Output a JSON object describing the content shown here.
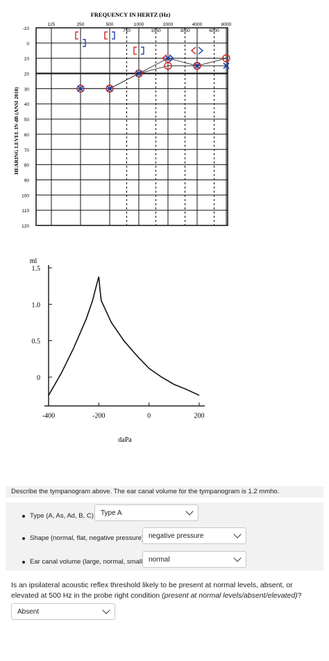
{
  "audiogram": {
    "title": "FREQUENCY IN HERTZ (Hz)",
    "y_axis_label": "HEARING LEVEL IN dB (ANSI 2010)",
    "freq_top": [
      "125",
      "250",
      "500",
      "1000",
      "2000",
      "4000",
      "8000"
    ],
    "freq_mid": [
      "750",
      "1500",
      "3000",
      "6000"
    ],
    "db_labels": [
      "-10",
      "0",
      "10",
      "20",
      "30",
      "40",
      "50",
      "60",
      "70",
      "80",
      "90",
      "100",
      "110",
      "120"
    ]
  },
  "chart_data": [
    {
      "type": "line",
      "title": "FREQUENCY IN HERTZ (Hz)",
      "xlabel": "",
      "ylabel": "HEARING LEVEL IN dB (ANSI 2010)",
      "ylim": [
        -10,
        120
      ],
      "y_inverted": true,
      "series": [
        {
          "name": "",
          "symbol": "O",
          "color": "#d02020",
          "points": [
            [
              250,
              30
            ],
            [
              500,
              30
            ],
            [
              1000,
              20
            ],
            [
              2000,
              15
            ],
            [
              4000,
              15
            ],
            [
              8000,
              10
            ]
          ]
        },
        {
          "name": "",
          "symbol": "X",
          "color": "#1a3fb0",
          "points": [
            [
              250,
              30
            ],
            [
              500,
              30
            ],
            [
              1000,
              20
            ],
            [
              2000,
              10
            ],
            [
              4000,
              15
            ],
            [
              8000,
              15
            ]
          ]
        },
        {
          "name": "",
          "symbol": "<",
          "color": "#d02020",
          "points": [
            [
              2000,
              10
            ],
            [
              4000,
              5
            ]
          ]
        },
        {
          "name": "",
          "symbol": ">",
          "color": "#1a3fb0",
          "points": [
            [
              2000,
              10
            ],
            [
              4000,
              5
            ]
          ]
        },
        {
          "name": "",
          "symbol": "[",
          "color": "#d02020",
          "points": [
            [
              250,
              -5
            ],
            [
              500,
              -5
            ],
            [
              1000,
              5
            ]
          ]
        },
        {
          "name": "",
          "symbol": "]",
          "color": "#1a3fb0",
          "points": [
            [
              250,
              0
            ],
            [
              500,
              -5
            ],
            [
              1000,
              5
            ]
          ]
        }
      ]
    },
    {
      "type": "line",
      "title": "",
      "xlabel": "daPa",
      "ylabel": "ml",
      "xlim": [
        -400,
        200
      ],
      "ylim": [
        0,
        1.5
      ],
      "x_ticks": [
        "-400",
        "-200",
        "0",
        "200"
      ],
      "y_ticks": [
        "1.5",
        "1.0",
        "0.5",
        "0"
      ],
      "series": [
        {
          "name": "",
          "x": [
            -400,
            -350,
            -300,
            -250,
            -225,
            -210,
            -200,
            -195,
            -190,
            -170,
            -150,
            -100,
            -50,
            0,
            50,
            100,
            150,
            200
          ],
          "y": [
            -0.25,
            0.05,
            0.4,
            0.8,
            1.05,
            1.25,
            1.38,
            1.2,
            1.05,
            0.9,
            0.75,
            0.5,
            0.3,
            0.12,
            0.0,
            -0.1,
            -0.17,
            -0.25
          ]
        }
      ]
    }
  ],
  "description": "Describe the tympanogram above.  The ear canal volume for the tympanogram is 1.2 mmho.",
  "questions": [
    {
      "label": "Type (A, As, Ad, B, C):",
      "value": "Type A"
    },
    {
      "label": "Shape (normal, flat, negative pressure):",
      "value": "negative pressure"
    },
    {
      "label": "Ear canal volume (large, normal, small):",
      "value": "normal"
    }
  ],
  "reflex_question": {
    "text": "Is an ipsilateral acoustic reflex threshold likely to be present at normal levels, absent, or elevated at 500 Hz in the probe right condition ",
    "hint": "(present at normal levels/absent/elevated)",
    "suffix": "?",
    "value": "Absent"
  },
  "colors": {
    "right_ear": "#d02020",
    "left_ear": "#1a3fb0",
    "panel": "#f2f2f2"
  }
}
